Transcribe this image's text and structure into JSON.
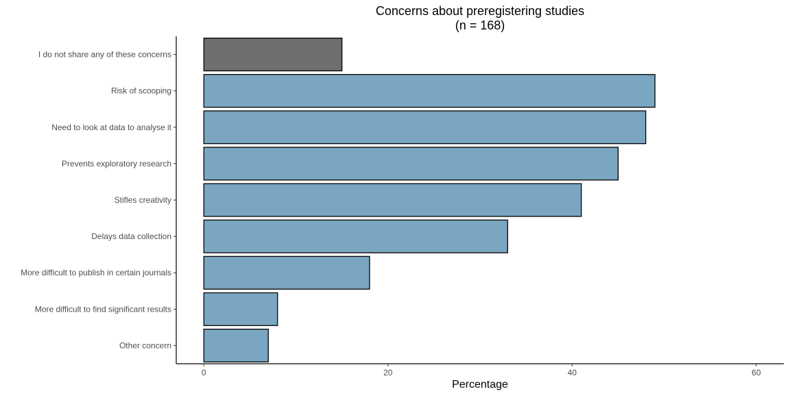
{
  "chart_data": {
    "type": "bar",
    "orientation": "horizontal",
    "title": "Concerns about preregistering studies",
    "subtitle": "(n = 168)",
    "xlabel": "Percentage",
    "ylabel": "",
    "xlim": [
      -3,
      63
    ],
    "xticks": [
      0,
      20,
      40,
      60
    ],
    "grid": false,
    "legend": "none",
    "categories": [
      "I do not share any of these concerns",
      "Risk of scooping",
      "Need to look at data to analyse it",
      "Prevents exploratory research",
      "Stifles creativity",
      "Delays data collection",
      "More difficult to publish in certain journals",
      "More difficult to find significant results",
      "Other concern"
    ],
    "values": [
      15,
      49,
      48,
      45,
      41,
      33,
      18,
      8,
      7
    ],
    "bar_colors": [
      "#6e6e6e",
      "#7aa6c2",
      "#7aa6c2",
      "#7aa6c2",
      "#7aa6c2",
      "#7aa6c2",
      "#7aa6c2",
      "#7aa6c2",
      "#7aa6c2"
    ],
    "bar_outline": "#000000"
  }
}
